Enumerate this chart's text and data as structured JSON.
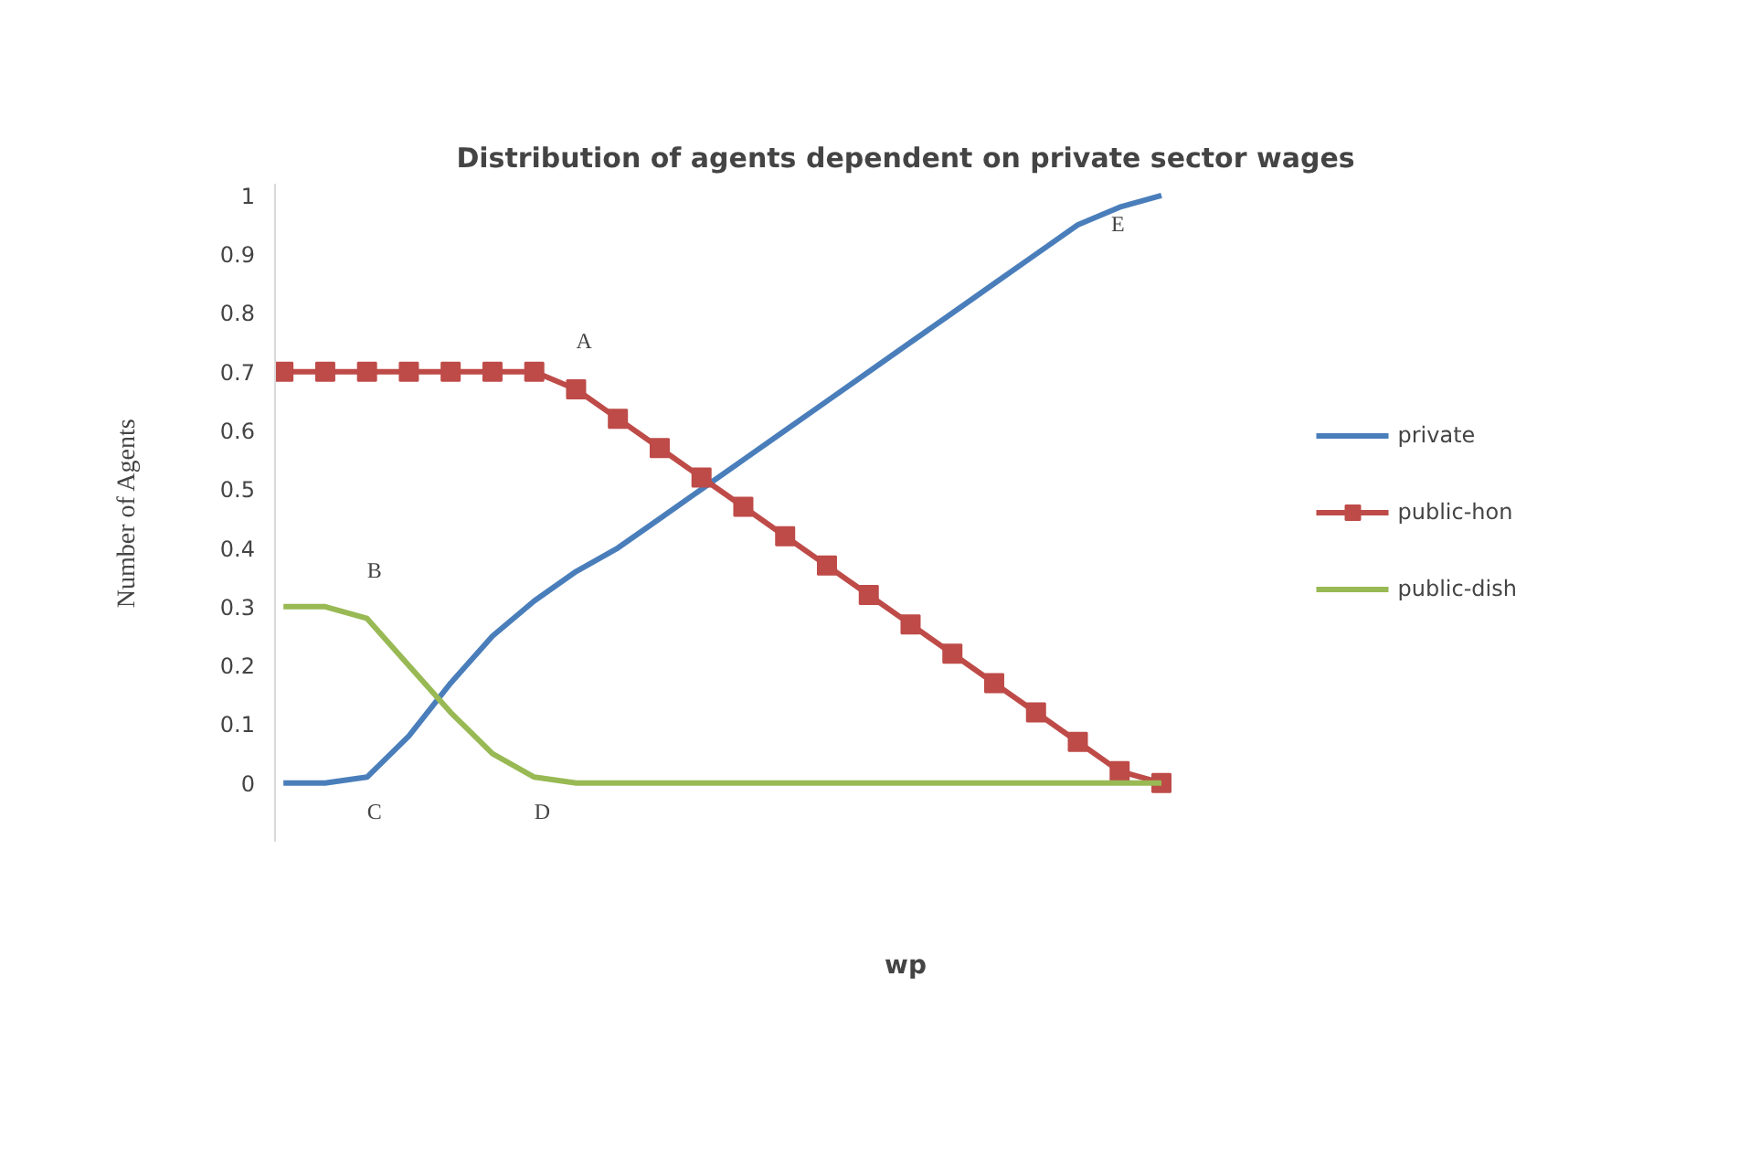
{
  "chart_data": {
    "type": "line",
    "title": "Distribution of agents dependent on private sector wages",
    "xlabel": "wp",
    "ylabel": "Number of Agents",
    "categories": [
      null,
      null,
      null,
      null,
      null,
      null,
      null,
      null,
      null,
      null,
      null,
      null,
      null,
      null,
      null,
      null,
      null,
      null,
      null,
      null,
      null,
      null
    ],
    "series": [
      {
        "name": "private",
        "color": "#4a7ebb",
        "marker": "none",
        "values": [
          0,
          0,
          0.01,
          0.08,
          0.17,
          0.25,
          0.31,
          0.36,
          0.4,
          0.45,
          0.5,
          0.55,
          0.6,
          0.65,
          0.7,
          0.75,
          0.8,
          0.85,
          0.9,
          0.95,
          0.98,
          1.0
        ]
      },
      {
        "name": "public-hon",
        "color": "#be4b48",
        "marker": "square",
        "values": [
          0.7,
          0.7,
          0.7,
          0.7,
          0.7,
          0.7,
          0.7,
          0.67,
          0.62,
          0.57,
          0.52,
          0.47,
          0.42,
          0.37,
          0.32,
          0.27,
          0.22,
          0.17,
          0.12,
          0.07,
          0.02,
          0
        ]
      },
      {
        "name": "public-dish",
        "color": "#98b954",
        "marker": "none",
        "values": [
          0.3,
          0.3,
          0.28,
          0.2,
          0.12,
          0.05,
          0.01,
          0,
          0,
          0,
          0,
          0,
          0,
          0,
          0,
          0,
          0,
          0,
          0,
          0,
          0,
          0
        ]
      }
    ],
    "annotations": [
      "A",
      "B",
      "C",
      "D",
      "E"
    ],
    "ylim": [
      -0.1,
      1.02
    ],
    "yticks": [
      0,
      0.1,
      0.2,
      0.3,
      0.4,
      0.5,
      0.6,
      0.7,
      0.8,
      0.9,
      1
    ],
    "grid": false,
    "legend": "right",
    "tick_labels": "y"
  }
}
